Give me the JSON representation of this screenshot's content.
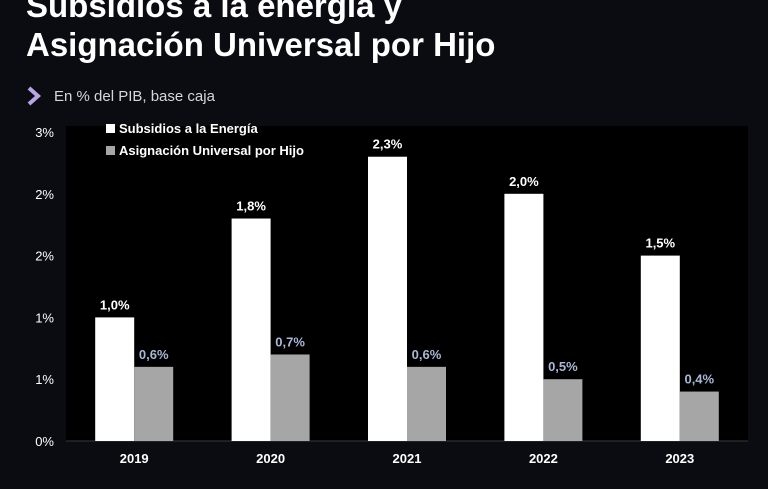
{
  "header": {
    "title_line1": "Subsidios a la energía y",
    "title_line2": "Asignación Universal por Hijo",
    "subtitle": "En % del PIB, base caja",
    "subtitle_icon": "chevron-right-icon"
  },
  "chart_data": {
    "type": "bar",
    "categories": [
      "2019",
      "2020",
      "2021",
      "2022",
      "2023"
    ],
    "series": [
      {
        "name": "Subsidios a la Energía",
        "values": [
          1.0,
          1.8,
          2.3,
          2.0,
          1.5
        ],
        "labels": [
          "1,0%",
          "1,8%",
          "2,3%",
          "2,0%",
          "1,5%"
        ],
        "color": "#ffffff",
        "label_color": "#ffffff"
      },
      {
        "name": "Asignación Universal por Hijo",
        "values": [
          0.6,
          0.7,
          0.6,
          0.5,
          0.4
        ],
        "labels": [
          "0,6%",
          "0,7%",
          "0,6%",
          "0,5%",
          "0,4%"
        ],
        "color": "#a6a6a6",
        "label_color": "#a9b8d6"
      }
    ],
    "ylim": [
      0,
      2.5
    ],
    "yticks": [
      0,
      0.5,
      1.0,
      1.5,
      2.0,
      2.5
    ],
    "ytick_labels": [
      "0%",
      "1%",
      "1%",
      "2%",
      "2%",
      "3%"
    ],
    "legend_position": "top-left",
    "plot_background": "#000000",
    "grid": false
  }
}
